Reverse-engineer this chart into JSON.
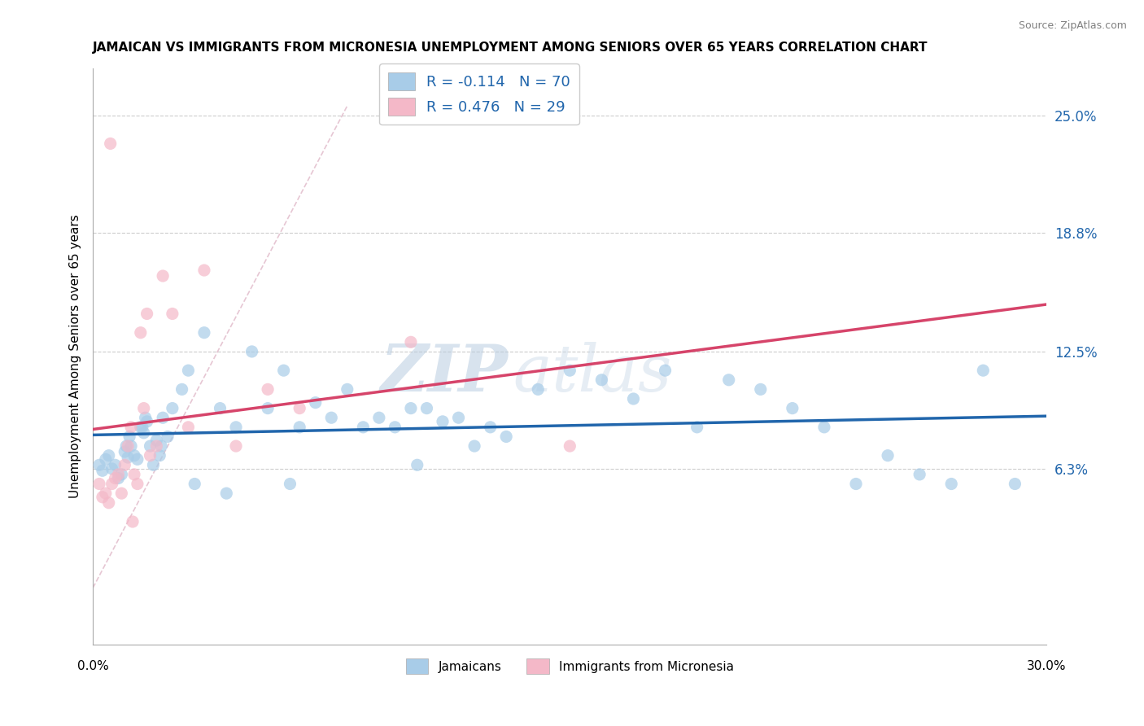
{
  "title": "JAMAICAN VS IMMIGRANTS FROM MICRONESIA UNEMPLOYMENT AMONG SENIORS OVER 65 YEARS CORRELATION CHART",
  "source": "Source: ZipAtlas.com",
  "ylabel": "Unemployment Among Seniors over 65 years",
  "y_ticks_right": [
    6.3,
    12.5,
    18.8,
    25.0
  ],
  "y_tick_labels_right": [
    "6.3%",
    "12.5%",
    "18.8%",
    "25.0%"
  ],
  "xmin": 0.0,
  "xmax": 30.0,
  "ymin": -3.0,
  "ymax": 27.5,
  "watermark_zip": "ZIP",
  "watermark_atlas": "atlas",
  "blue_color": "#a8cce8",
  "pink_color": "#f4b8c8",
  "blue_line_color": "#2166ac",
  "pink_line_color": "#d6446a",
  "blue_R": -0.114,
  "blue_N": 70,
  "pink_R": 0.476,
  "pink_N": 29,
  "blue_scatter_x": [
    0.2,
    0.3,
    0.4,
    0.5,
    0.6,
    0.7,
    0.8,
    0.9,
    1.0,
    1.1,
    1.2,
    1.3,
    1.4,
    1.5,
    1.6,
    1.7,
    1.8,
    1.9,
    2.0,
    2.1,
    2.2,
    2.5,
    2.8,
    3.0,
    3.5,
    4.0,
    4.5,
    5.0,
    5.5,
    6.0,
    6.5,
    7.0,
    7.5,
    8.0,
    8.5,
    9.0,
    9.5,
    10.0,
    10.5,
    11.0,
    11.5,
    12.0,
    12.5,
    13.0,
    14.0,
    15.0,
    16.0,
    17.0,
    18.0,
    19.0,
    20.0,
    21.0,
    22.0,
    23.0,
    24.0,
    25.0,
    26.0,
    27.0,
    28.0,
    29.0,
    1.05,
    1.15,
    1.55,
    1.65,
    2.15,
    2.35,
    3.2,
    4.2,
    6.2,
    10.2
  ],
  "blue_scatter_y": [
    6.5,
    6.2,
    6.8,
    7.0,
    6.3,
    6.5,
    5.8,
    6.0,
    7.2,
    6.9,
    7.5,
    7.0,
    6.8,
    8.5,
    8.2,
    8.8,
    7.5,
    6.5,
    7.8,
    7.0,
    9.0,
    9.5,
    10.5,
    11.5,
    13.5,
    9.5,
    8.5,
    12.5,
    9.5,
    11.5,
    8.5,
    9.8,
    9.0,
    10.5,
    8.5,
    9.0,
    8.5,
    9.5,
    9.5,
    8.8,
    9.0,
    7.5,
    8.5,
    8.0,
    10.5,
    11.5,
    11.0,
    10.0,
    11.5,
    8.5,
    11.0,
    10.5,
    9.5,
    8.5,
    5.5,
    7.0,
    6.0,
    5.5,
    11.5,
    5.5,
    7.5,
    8.0,
    8.5,
    9.0,
    7.5,
    8.0,
    5.5,
    5.0,
    5.5,
    6.5
  ],
  "pink_scatter_x": [
    0.2,
    0.3,
    0.4,
    0.5,
    0.6,
    0.7,
    0.8,
    0.9,
    1.0,
    1.1,
    1.2,
    1.3,
    1.4,
    1.5,
    1.6,
    1.7,
    1.8,
    2.0,
    2.2,
    2.5,
    3.0,
    3.5,
    4.5,
    5.5,
    6.5,
    10.0,
    15.0,
    1.25,
    0.55
  ],
  "pink_scatter_y": [
    5.5,
    4.8,
    5.0,
    4.5,
    5.5,
    5.8,
    6.0,
    5.0,
    6.5,
    7.5,
    8.5,
    6.0,
    5.5,
    13.5,
    9.5,
    14.5,
    7.0,
    7.5,
    16.5,
    14.5,
    8.5,
    16.8,
    7.5,
    10.5,
    9.5,
    13.0,
    7.5,
    3.5,
    23.5
  ],
  "diag_line_color": "#e8b4c0",
  "diag_line_style": "--"
}
